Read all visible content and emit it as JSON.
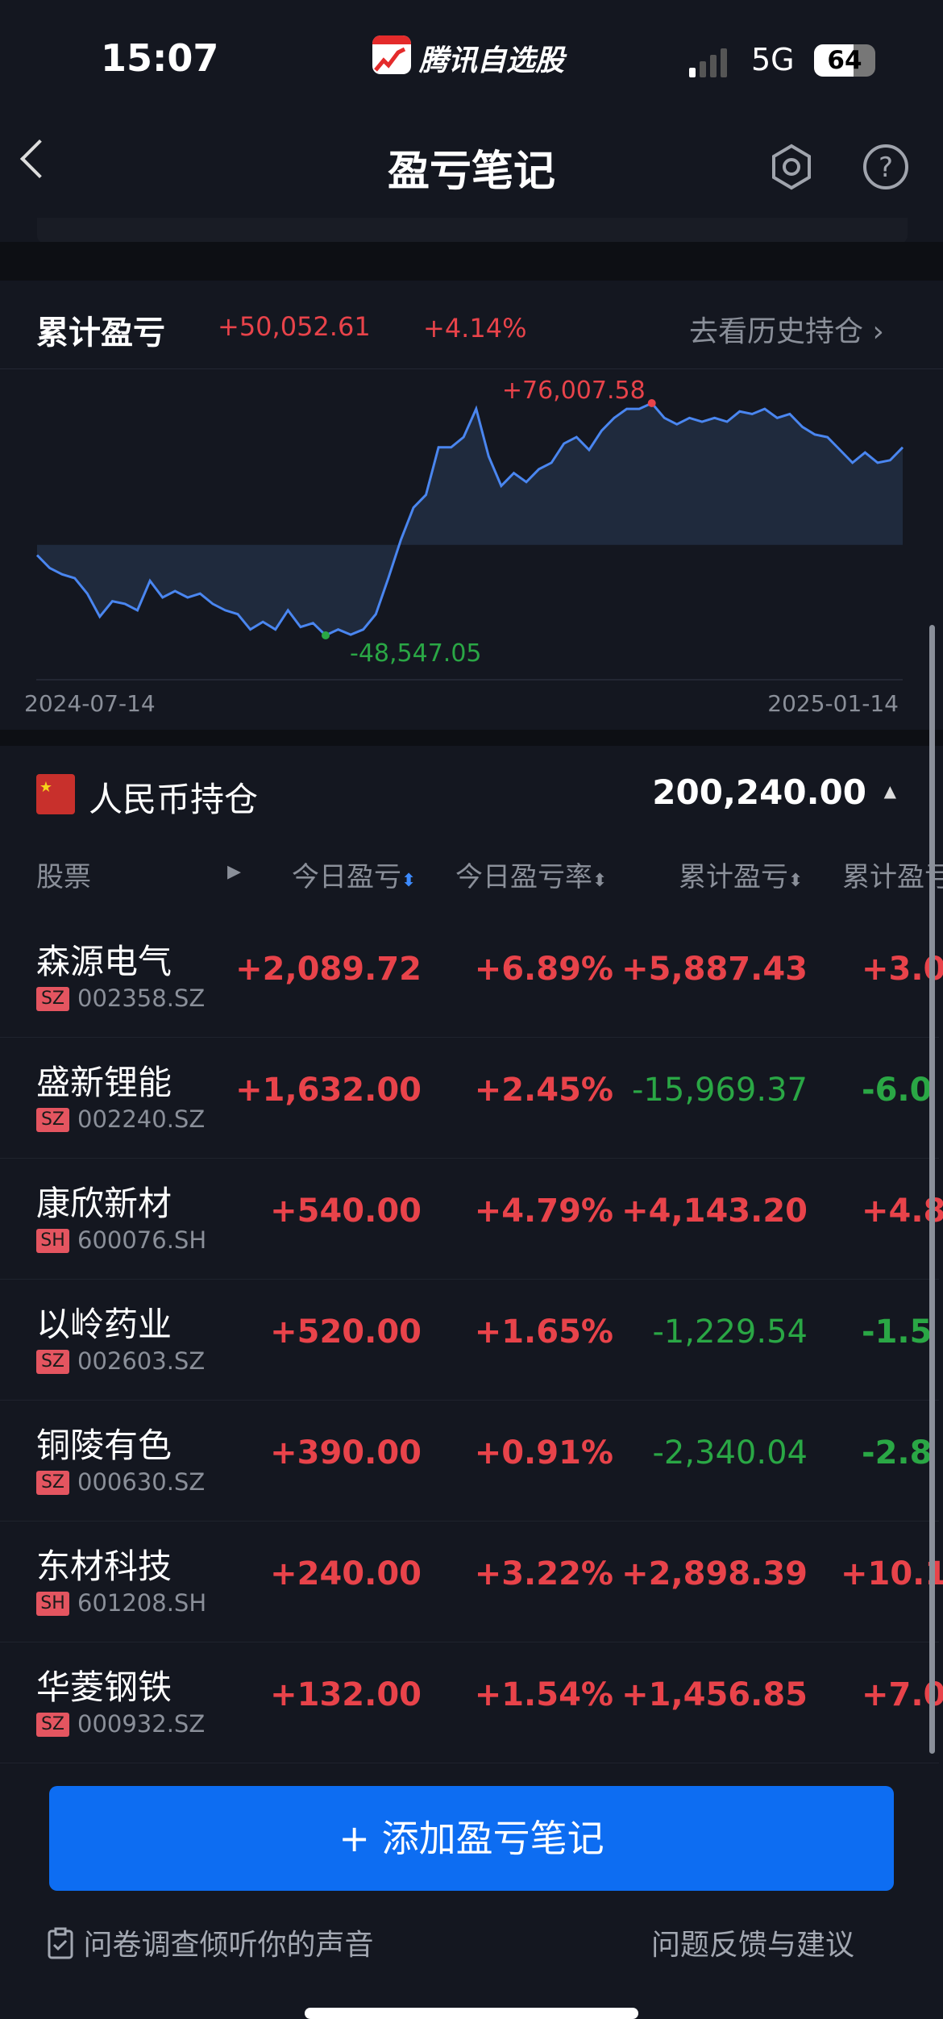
{
  "status_bar": {
    "time": "15:07",
    "app_name": "腾讯自选股",
    "network": "5G",
    "battery": "64",
    "battery_level": 0.64
  },
  "nav": {
    "title": "盈亏笔记",
    "back_icon": "chevron-left-icon",
    "settings_icon": "hexagon-gear-icon",
    "help_icon": "question-circle-icon"
  },
  "summary": {
    "label": "累计盈亏",
    "amount": "+50,052.61",
    "percent": "+4.14%",
    "history_link": "去看历史持仓"
  },
  "chart_data": {
    "type": "area",
    "x_start": "2024-07-14",
    "x_end": "2025-01-14",
    "max_label": "+76,007.58",
    "min_label": "-48,547.05",
    "baseline": 0,
    "values": [
      -5504,
      -12384,
      -15824,
      -17888,
      -26144,
      -38528,
      -30272,
      -31648,
      -35088,
      -19264,
      -28208,
      -24768,
      -28208,
      -26144,
      -31648,
      -35088,
      -37152,
      -45408,
      -41280,
      -45408,
      -35088,
      -44032,
      -41968,
      -48547.05,
      -45408,
      -48160,
      -45408,
      -37152,
      -17888,
      2752,
      19952,
      26832,
      52288,
      52288,
      57792,
      73000,
      47472,
      31648,
      38528,
      33712,
      40592,
      44032,
      54352,
      57792,
      50912,
      61232,
      68112,
      72928,
      72928,
      76007.58,
      68112,
      64672,
      68112,
      66048,
      68112,
      66048,
      71552,
      70176,
      72928,
      68112,
      70176,
      63296,
      59168,
      57792,
      50912,
      44032,
      49536,
      44032,
      45408,
      52288
    ],
    "colors": {
      "line": "#4a86f0",
      "fill": "#1f2a3d",
      "max": "#e8434a",
      "min": "#2aa745"
    }
  },
  "holdings": {
    "flag_icon": "china-flag-icon",
    "title": "人民币持仓",
    "total": "200,240.00",
    "columns": [
      "股票",
      "今日盈亏",
      "今日盈亏率",
      "累计盈亏",
      "累计盈亏率"
    ],
    "rows": [
      {
        "name": "森源电气",
        "market": "SZ",
        "code": "002358.SZ",
        "today": "+2,089.72",
        "today_rate": "+6.89%",
        "total": "+5,887.43",
        "total_rate": "+3.0"
      },
      {
        "name": "盛新锂能",
        "market": "SZ",
        "code": "002240.SZ",
        "today": "+1,632.00",
        "today_rate": "+2.45%",
        "total": "-15,969.37",
        "total_rate": "-6.0"
      },
      {
        "name": "康欣新材",
        "market": "SH",
        "code": "600076.SH",
        "today": "+540.00",
        "today_rate": "+4.79%",
        "total": "+4,143.20",
        "total_rate": "+4.8"
      },
      {
        "name": "以岭药业",
        "market": "SZ",
        "code": "002603.SZ",
        "today": "+520.00",
        "today_rate": "+1.65%",
        "total": "-1,229.54",
        "total_rate": "-1.5"
      },
      {
        "name": "铜陵有色",
        "market": "SZ",
        "code": "000630.SZ",
        "today": "+390.00",
        "today_rate": "+0.91%",
        "total": "-2,340.04",
        "total_rate": "-2.8"
      },
      {
        "name": "东材科技",
        "market": "SH",
        "code": "601208.SH",
        "today": "+240.00",
        "today_rate": "+3.22%",
        "total": "+2,898.39",
        "total_rate": "+10.1"
      },
      {
        "name": "华菱钢铁",
        "market": "SZ",
        "code": "000932.SZ",
        "today": "+132.00",
        "today_rate": "+1.54%",
        "total": "+1,456.85",
        "total_rate": "+7.0"
      }
    ]
  },
  "add_button": "+ 添加盈亏笔记",
  "footer": {
    "survey": "问卷调查倾听你的声音",
    "feedback": "问题反馈与建议"
  },
  "colors": {
    "up": "#e8434a",
    "down": "#2aa745",
    "accent": "#0d6df2",
    "background": "#141720"
  }
}
